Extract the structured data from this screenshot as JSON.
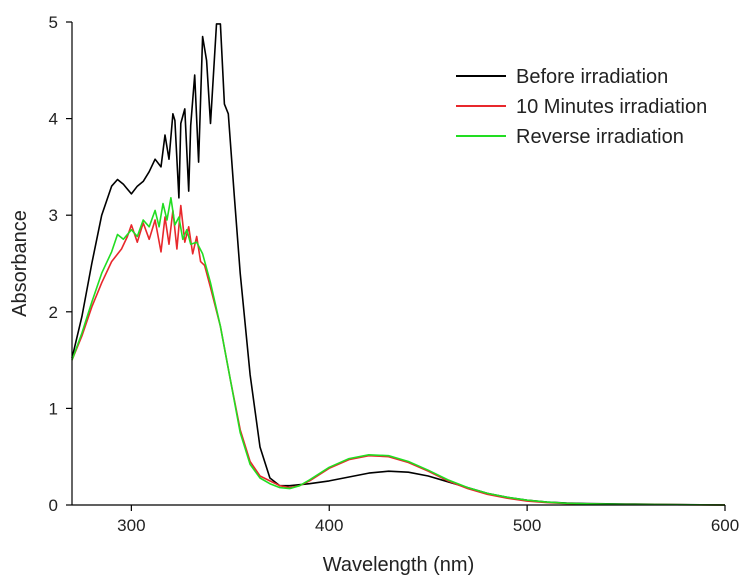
{
  "chart_data": {
    "type": "line",
    "xlabel": "Wavelength (nm)",
    "ylabel": "Absorbance",
    "xlim": [
      270,
      600
    ],
    "ylim": [
      0,
      5
    ],
    "xticks": [
      300,
      400,
      500,
      600
    ],
    "yticks": [
      0,
      1,
      2,
      3,
      4,
      5
    ],
    "grid": false,
    "legend_position": "top-right",
    "series": [
      {
        "name": "Before irradiation",
        "color": "#000000",
        "x": [
          270,
          275,
          280,
          285,
          290,
          293,
          296,
          300,
          303,
          306,
          309,
          312,
          315,
          317,
          319,
          321,
          322,
          324,
          325,
          327,
          329,
          330,
          332,
          334,
          336,
          338,
          340,
          343,
          345,
          347,
          349,
          352,
          355,
          360,
          365,
          370,
          375,
          380,
          385,
          390,
          400,
          410,
          420,
          430,
          440,
          450,
          460,
          470,
          480,
          490,
          500,
          510,
          520,
          530,
          550,
          575,
          600
        ],
        "y": [
          1.52,
          1.95,
          2.5,
          3.0,
          3.3,
          3.37,
          3.32,
          3.22,
          3.3,
          3.35,
          3.45,
          3.58,
          3.5,
          3.83,
          3.58,
          4.05,
          3.98,
          3.18,
          3.95,
          4.1,
          3.25,
          3.93,
          4.45,
          3.55,
          4.85,
          4.6,
          3.95,
          4.98,
          4.98,
          4.15,
          4.05,
          3.2,
          2.4,
          1.35,
          0.6,
          0.28,
          0.2,
          0.2,
          0.21,
          0.22,
          0.25,
          0.29,
          0.33,
          0.35,
          0.34,
          0.3,
          0.24,
          0.18,
          0.12,
          0.08,
          0.05,
          0.03,
          0.02,
          0.015,
          0.01,
          0.005,
          0.0
        ]
      },
      {
        "name": "10 Minutes irradiation",
        "color": "#e8282c",
        "x": [
          270,
          275,
          280,
          285,
          290,
          295,
          298,
          300,
          303,
          306,
          309,
          312,
          315,
          317,
          319,
          321,
          323,
          325,
          327,
          329,
          331,
          333,
          335,
          337,
          340,
          345,
          350,
          355,
          360,
          365,
          370,
          375,
          380,
          385,
          390,
          400,
          410,
          420,
          430,
          440,
          450,
          460,
          470,
          480,
          490,
          500,
          510,
          520,
          530,
          550,
          575,
          600
        ],
        "y": [
          1.5,
          1.75,
          2.05,
          2.3,
          2.52,
          2.65,
          2.78,
          2.9,
          2.72,
          2.92,
          2.75,
          2.95,
          2.62,
          2.98,
          2.7,
          3.05,
          2.65,
          3.1,
          2.72,
          2.88,
          2.6,
          2.78,
          2.52,
          2.48,
          2.25,
          1.85,
          1.3,
          0.78,
          0.45,
          0.3,
          0.25,
          0.2,
          0.18,
          0.2,
          0.25,
          0.38,
          0.47,
          0.51,
          0.5,
          0.44,
          0.35,
          0.25,
          0.17,
          0.11,
          0.07,
          0.04,
          0.025,
          0.015,
          0.01,
          0.005,
          0.003,
          0.0
        ]
      },
      {
        "name": "Reverse irradiation",
        "color": "#22dd22",
        "x": [
          270,
          275,
          280,
          285,
          290,
          293,
          296,
          300,
          303,
          306,
          309,
          312,
          314,
          316,
          318,
          320,
          322,
          324,
          326,
          328,
          330,
          333,
          336,
          340,
          345,
          350,
          355,
          360,
          365,
          370,
          375,
          380,
          385,
          390,
          400,
          410,
          420,
          430,
          440,
          450,
          460,
          470,
          480,
          490,
          500,
          510,
          520,
          530,
          550,
          575,
          600
        ],
        "y": [
          1.5,
          1.78,
          2.1,
          2.4,
          2.62,
          2.8,
          2.75,
          2.85,
          2.78,
          2.95,
          2.88,
          3.05,
          2.88,
          3.12,
          2.95,
          3.18,
          2.9,
          2.98,
          2.75,
          2.85,
          2.7,
          2.72,
          2.6,
          2.3,
          1.85,
          1.3,
          0.75,
          0.42,
          0.28,
          0.22,
          0.18,
          0.17,
          0.2,
          0.26,
          0.39,
          0.48,
          0.52,
          0.51,
          0.45,
          0.36,
          0.26,
          0.18,
          0.12,
          0.08,
          0.05,
          0.03,
          0.018,
          0.012,
          0.006,
          0.003,
          0.0
        ]
      }
    ]
  }
}
